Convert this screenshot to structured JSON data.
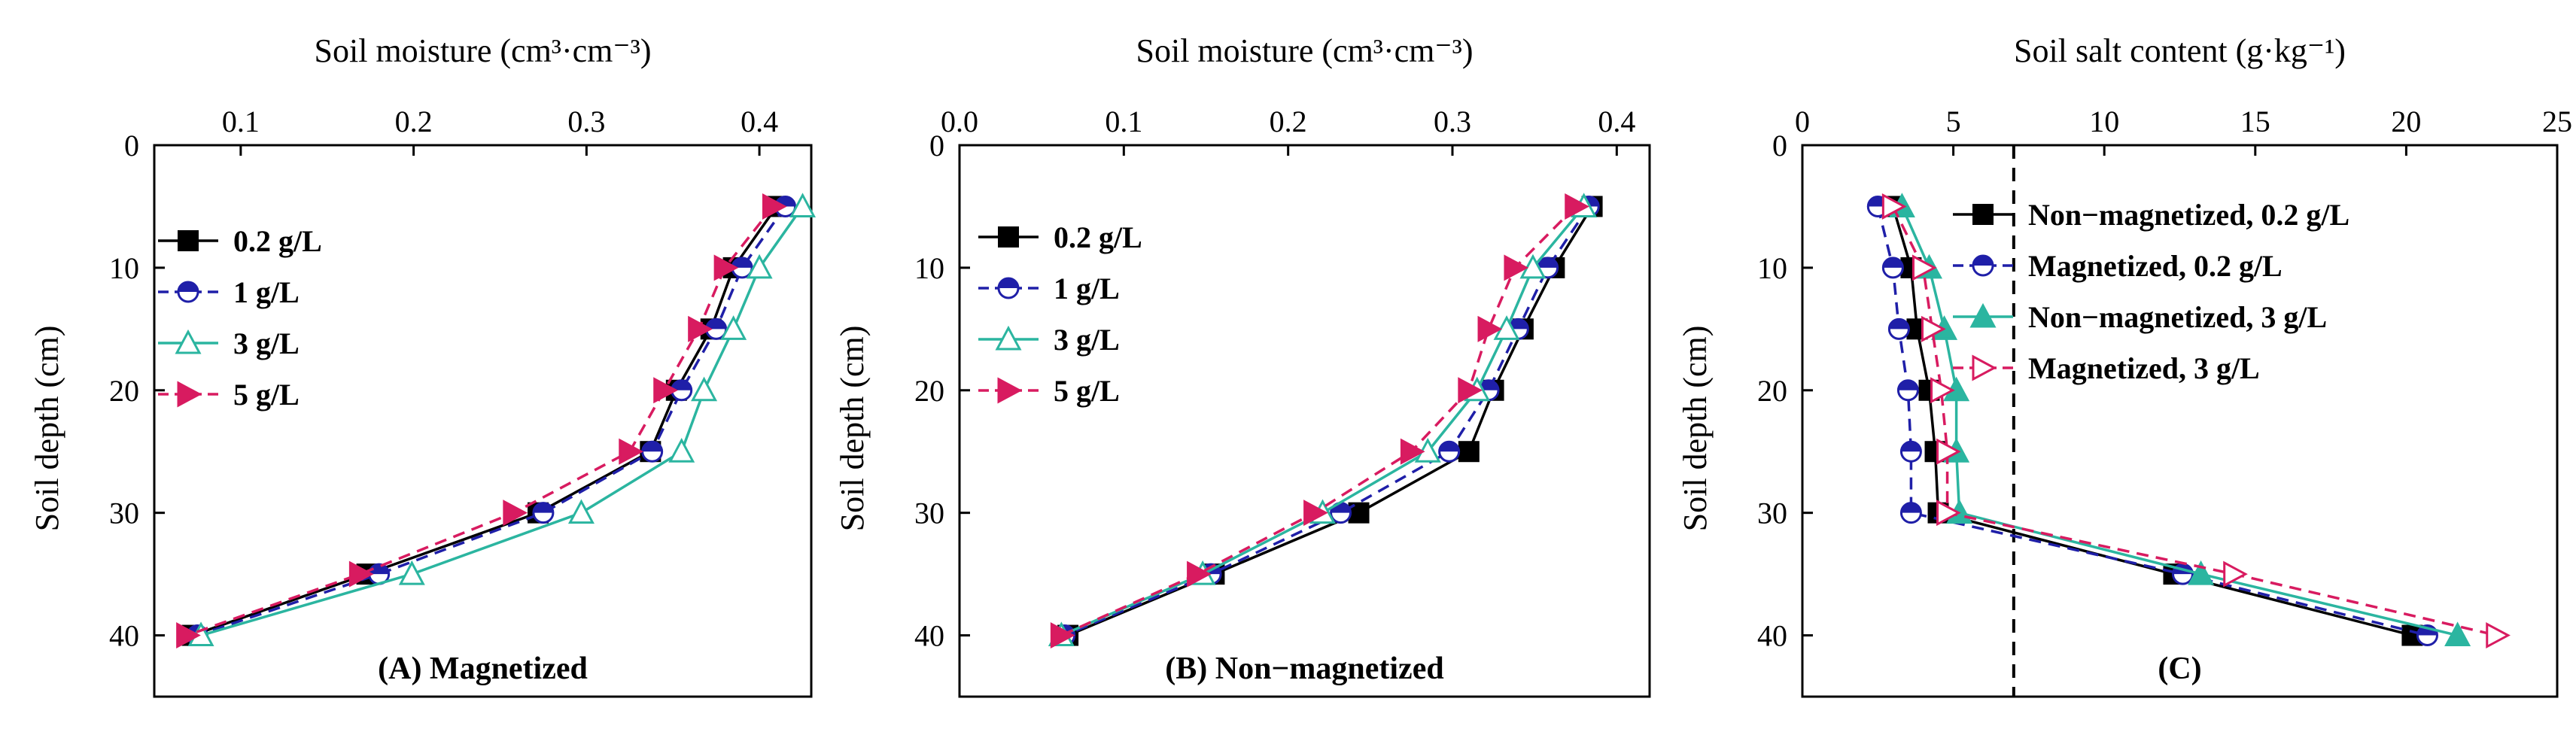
{
  "chart_data": [
    {
      "type": "line",
      "panel": "A",
      "title": "(A) Magnetized",
      "xlabel": "Soil moisture (cm³·cm⁻³)",
      "ylabel": "Soil depth (cm)",
      "xlim": [
        0.05,
        0.43
      ],
      "ylim": [
        0,
        45
      ],
      "xticks": [
        0.1,
        0.2,
        0.3,
        0.4
      ],
      "xtick_labels": [
        "0.1",
        "0.2",
        "0.3",
        "0.4"
      ],
      "yticks": [
        0,
        10,
        20,
        30,
        40
      ],
      "ytick_labels": [
        "0",
        "10",
        "20",
        "30",
        "40"
      ],
      "y_inverted": true,
      "x_axis_position": "top",
      "legend_position": "upper-left",
      "y": [
        5,
        10,
        15,
        20,
        25,
        30,
        35,
        40
      ],
      "series": [
        {
          "name": "0.2 g/L",
          "color": "#000000",
          "dash": "solid",
          "marker": "square-filled",
          "values": [
            0.41,
            0.385,
            0.372,
            0.352,
            0.337,
            0.272,
            0.173,
            0.072
          ]
        },
        {
          "name": "1 g/L",
          "color": "#1f1fa8",
          "dash": "dashed",
          "marker": "circle-half",
          "values": [
            0.415,
            0.39,
            0.375,
            0.355,
            0.338,
            0.275,
            0.18,
            0.075
          ]
        },
        {
          "name": "3 g/L",
          "color": "#2bb5a0",
          "dash": "solid",
          "marker": "triangle-open",
          "values": [
            0.425,
            0.4,
            0.385,
            0.368,
            0.355,
            0.297,
            0.199,
            0.077
          ]
        },
        {
          "name": "5 g/L",
          "color": "#d81b60",
          "dash": "dashed",
          "marker": "triangle-right-filled",
          "values": [
            0.408,
            0.38,
            0.365,
            0.345,
            0.325,
            0.258,
            0.169,
            0.069
          ]
        }
      ]
    },
    {
      "type": "line",
      "panel": "B",
      "title": "(B) Non−magnetized",
      "xlabel": "Soil moisture (cm³·cm⁻³)",
      "ylabel": "Soil depth (cm)",
      "xlim": [
        0.0,
        0.42
      ],
      "ylim": [
        0,
        45
      ],
      "xticks": [
        0.0,
        0.1,
        0.2,
        0.3,
        0.4
      ],
      "xtick_labels": [
        "0.0",
        "0.1",
        "0.2",
        "0.3",
        "0.4"
      ],
      "yticks": [
        0,
        10,
        20,
        30,
        40
      ],
      "ytick_labels": [
        "0",
        "10",
        "20",
        "30",
        "40"
      ],
      "y_inverted": true,
      "x_axis_position": "top",
      "legend_position": "upper-left",
      "y": [
        5,
        10,
        15,
        20,
        25,
        30,
        35,
        40
      ],
      "series": [
        {
          "name": "0.2 g/L",
          "color": "#000000",
          "dash": "solid",
          "marker": "square-filled",
          "values": [
            0.385,
            0.362,
            0.343,
            0.325,
            0.31,
            0.243,
            0.155,
            0.066
          ]
        },
        {
          "name": "1 g/L",
          "color": "#1f1fa8",
          "dash": "dashed",
          "marker": "circle-half",
          "values": [
            0.383,
            0.358,
            0.34,
            0.322,
            0.298,
            0.232,
            0.153,
            0.064
          ]
        },
        {
          "name": "3 g/L",
          "color": "#2bb5a0",
          "dash": "solid",
          "marker": "triangle-open",
          "values": [
            0.38,
            0.349,
            0.333,
            0.315,
            0.285,
            0.221,
            0.148,
            0.062
          ]
        },
        {
          "name": "5 g/L",
          "color": "#d81b60",
          "dash": "dashed",
          "marker": "triangle-right-filled",
          "values": [
            0.375,
            0.338,
            0.322,
            0.31,
            0.275,
            0.216,
            0.145,
            0.062
          ]
        }
      ]
    },
    {
      "type": "line",
      "panel": "C",
      "title": "(C)",
      "xlabel": "Soil salt content (g·kg⁻¹)",
      "ylabel": "Soil depth (cm)",
      "xlim": [
        0,
        25
      ],
      "ylim": [
        0,
        45
      ],
      "xticks": [
        0,
        5,
        10,
        15,
        20,
        25
      ],
      "xtick_labels": [
        "0",
        "5",
        "10",
        "15",
        "20",
        "25"
      ],
      "yticks": [
        0,
        10,
        20,
        30,
        40
      ],
      "ytick_labels": [
        "0",
        "10",
        "20",
        "30",
        "40"
      ],
      "y_inverted": true,
      "x_axis_position": "top",
      "legend_position": "upper-right",
      "reference_line_x": 7,
      "y": [
        5,
        10,
        15,
        20,
        25,
        30,
        35,
        40
      ],
      "series": [
        {
          "name": "Non−magnetized, 0.2 g/L",
          "color": "#000000",
          "dash": "solid",
          "marker": "square-filled",
          "values": [
            3.0,
            3.6,
            3.8,
            4.2,
            4.4,
            4.5,
            12.3,
            20.2
          ]
        },
        {
          "name": "Magnetized, 0.2 g/L",
          "color": "#1f1fa8",
          "dash": "dashed",
          "marker": "circle-half",
          "values": [
            2.5,
            3.0,
            3.2,
            3.5,
            3.6,
            3.6,
            12.6,
            20.7
          ]
        },
        {
          "name": "Non−magnetized, 3 g/L",
          "color": "#2bb5a0",
          "dash": "solid",
          "marker": "triangle-filled",
          "values": [
            3.3,
            4.2,
            4.7,
            5.1,
            5.1,
            5.2,
            13.2,
            21.7
          ]
        },
        {
          "name": "Magnetized, 3 g/L",
          "color": "#d81b60",
          "dash": "dashed",
          "marker": "triangle-right-open",
          "values": [
            3.0,
            4.0,
            4.3,
            4.6,
            4.8,
            4.8,
            14.3,
            23.0
          ]
        }
      ]
    }
  ]
}
